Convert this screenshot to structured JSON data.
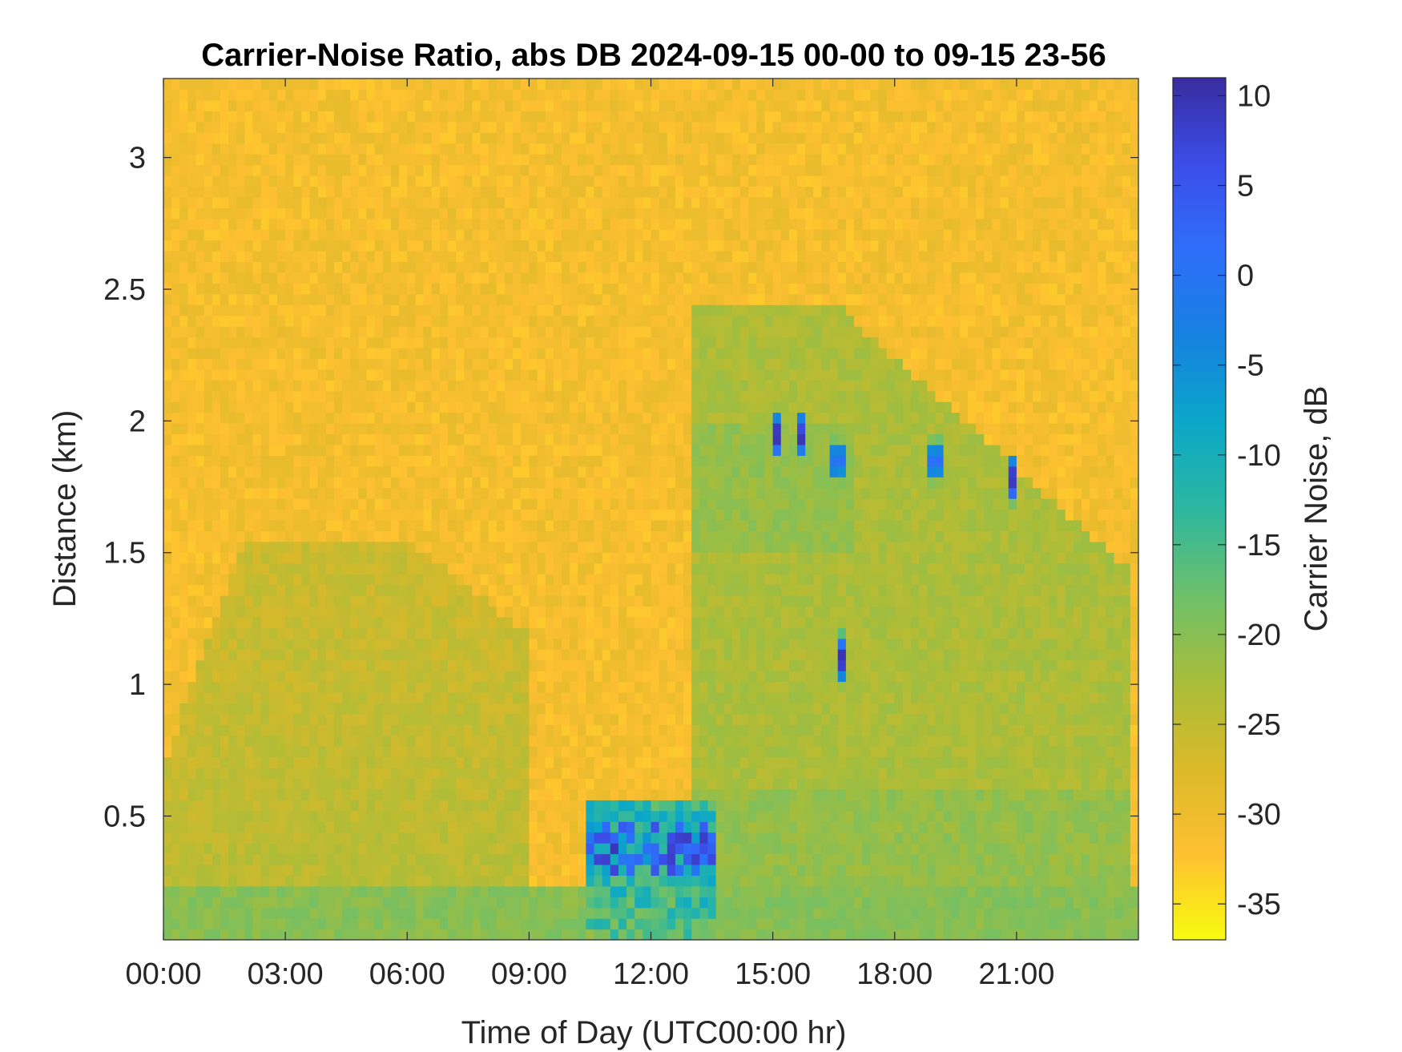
{
  "chart_data": {
    "type": "heatmap",
    "title": "Carrier-Noise Ratio, abs DB 2024-09-15 00-00 to 09-15 23-56",
    "xlabel": "Time of Day (UTC00:00 hr)",
    "ylabel": "Distance (km)",
    "colorbar_label": "Carrier Noise, dB",
    "x_unit": "hours",
    "xlim": [
      0,
      24
    ],
    "ylim": [
      0.03,
      3.3
    ],
    "clim": [
      -37,
      11
    ],
    "x_ticks": [
      0,
      3,
      6,
      9,
      12,
      15,
      18,
      21
    ],
    "x_tick_labels": [
      "00:00",
      "03:00",
      "06:00",
      "09:00",
      "12:00",
      "15:00",
      "18:00",
      "21:00"
    ],
    "y_ticks": [
      0.5,
      1,
      1.5,
      2,
      2.5,
      3
    ],
    "y_tick_labels": [
      "0.5",
      "1",
      "1.5",
      "2",
      "2.5",
      "3"
    ],
    "colorbar_ticks": [
      10,
      5,
      0,
      -5,
      -10,
      -15,
      -20,
      -25,
      -30,
      -35
    ],
    "colorbar_tick_labels": [
      "10",
      "5",
      "0",
      "-5",
      "-10",
      "-15",
      "-20",
      "-25",
      "-30",
      "-35"
    ],
    "colormap": "parula",
    "colormap_stops": [
      "#F9FB0E",
      "#FEC032",
      "#DAB92A",
      "#A8BD3A",
      "#6DC06A",
      "#2CB7A0",
      "#0BA7C9",
      "#1681E0",
      "#2F6EFA",
      "#3B4DE8",
      "#3A2C9F"
    ],
    "background_level_db": -31,
    "features": [
      {
        "name": "morning low aerosol layer",
        "x_range": [
          0,
          9
        ],
        "top_km": 1.55,
        "level_db": -24
      },
      {
        "name": "afternoon convective layer",
        "x_range": [
          13,
          23.8
        ],
        "top_km": 2.45,
        "level_db": -23
      },
      {
        "name": "near-surface strong return",
        "x_range": [
          10.5,
          13.5
        ],
        "top_km": 0.55,
        "peak_db": 8
      },
      {
        "name": "cloud returns",
        "points": [
          [
            15.1,
            1.95
          ],
          [
            15.7,
            1.95
          ],
          [
            16.6,
            1.85
          ],
          [
            16.7,
            1.1
          ],
          [
            19.0,
            1.85
          ],
          [
            20.9,
            1.78
          ]
        ],
        "peak_db": 8
      }
    ]
  }
}
